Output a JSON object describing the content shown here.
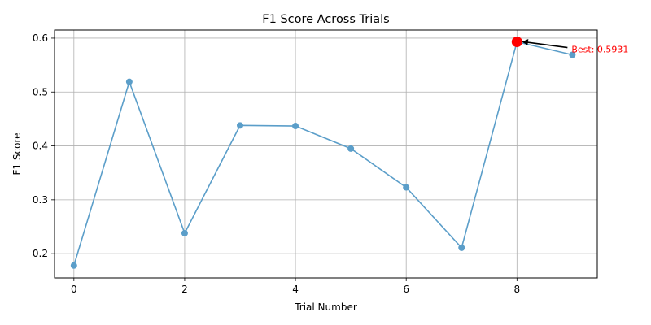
{
  "chart_data": {
    "type": "line",
    "title": "F1 Score Across Trials",
    "xlabel": "Trial Number",
    "ylabel": "F1 Score",
    "x": [
      0,
      1,
      2,
      3,
      4,
      5,
      6,
      7,
      8,
      9
    ],
    "series": [
      {
        "values": [
          0.178,
          0.519,
          0.238,
          0.438,
          0.437,
          0.395,
          0.323,
          0.211,
          0.5931,
          0.569
        ]
      }
    ],
    "xlim": [
      -0.35,
      9.45
    ],
    "ylim": [
      0.155,
      0.615
    ],
    "xticks": [
      0,
      2,
      4,
      6,
      8
    ],
    "xtick_labels": [
      "0",
      "2",
      "4",
      "6",
      "8"
    ],
    "yticks": [
      0.2,
      0.3,
      0.4,
      0.5,
      0.6
    ],
    "ytick_labels": [
      "0.2",
      "0.3",
      "0.4",
      "0.5",
      "0.6"
    ],
    "grid": true,
    "highlight": {
      "x": 8,
      "y": 0.5931,
      "label": "Best: 0.5931"
    },
    "colors": {
      "series": "#5b9ec9",
      "highlight": "#ff0000",
      "grid": "#b0b0b0",
      "arrow": "#000000"
    }
  }
}
